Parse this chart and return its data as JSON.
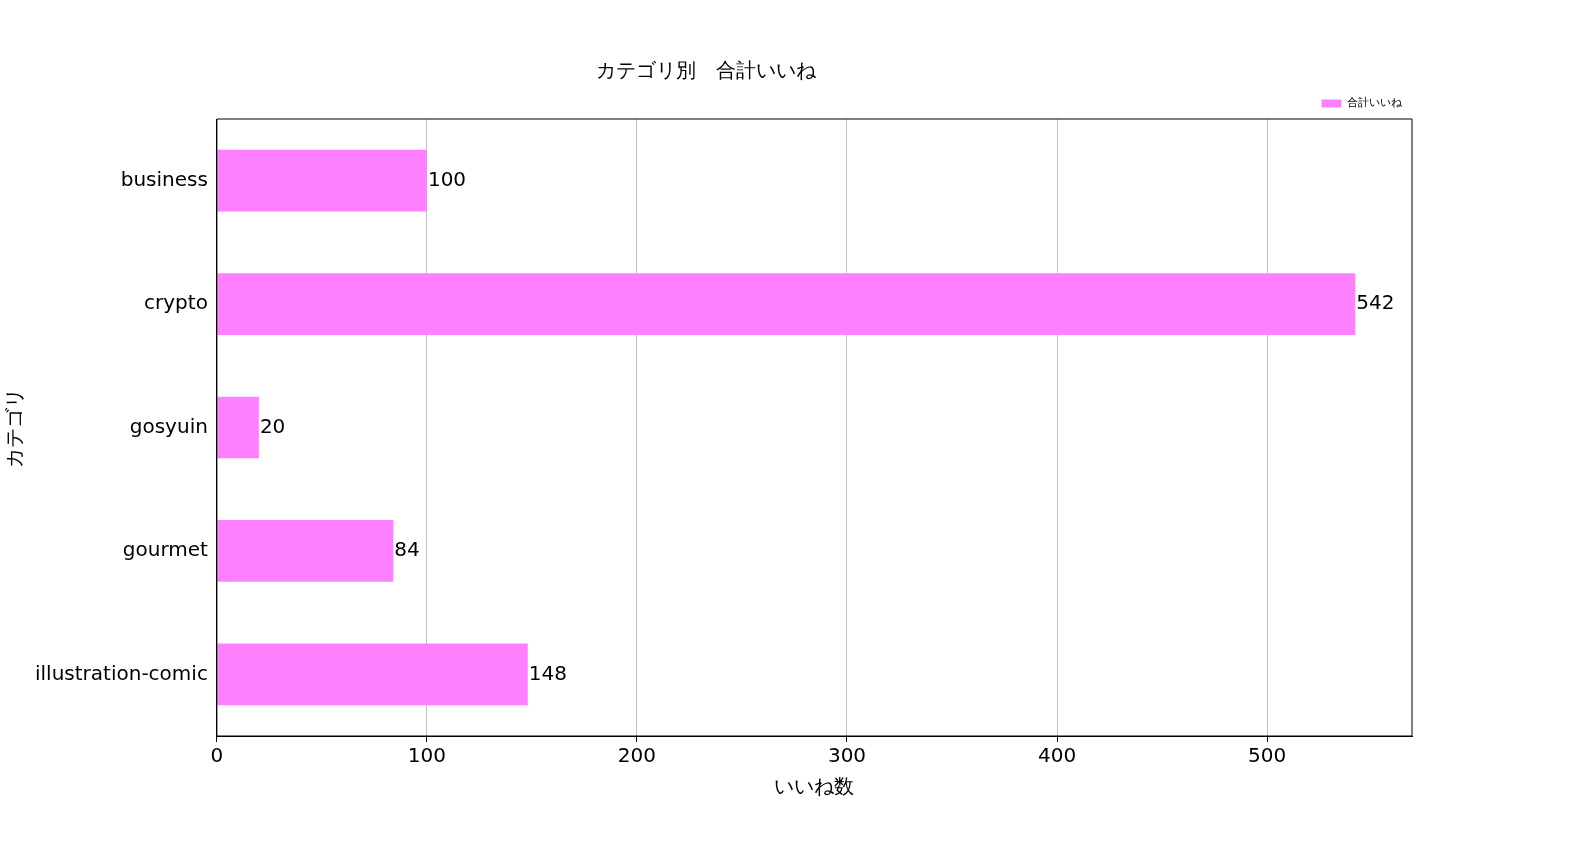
{
  "chart_data": {
    "type": "bar",
    "orientation": "horizontal",
    "title": "カテゴリ別　合計いいね",
    "xlabel": "いいね数",
    "ylabel": "カテゴリ",
    "categories": [
      "business",
      "crypto",
      "gosyuin",
      "gourmet",
      "illustration-comic"
    ],
    "series": [
      {
        "name": "合計いいね",
        "color": "#ff80ff",
        "values": [
          100,
          542,
          20,
          84,
          148
        ]
      }
    ],
    "xlim": [
      0,
      569
    ],
    "xticks": [
      0,
      100,
      200,
      300,
      400,
      500
    ],
    "grid": "x",
    "legend": "top right",
    "data_labels": true
  }
}
